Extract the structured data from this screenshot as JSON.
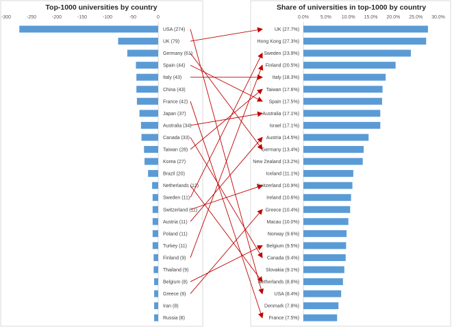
{
  "colors": {
    "bar": "#5b9bd5",
    "arrow": "#c00000",
    "panel_border": "#d9d9d9",
    "axis_line": "#d9d9d9"
  },
  "chart_data": [
    {
      "type": "bar",
      "orientation": "horizontal",
      "title": "Top-1000 universities by country",
      "xlim": [
        -300,
        0
      ],
      "xticks": [
        "-300",
        "-250",
        "-200",
        "-150",
        "-100",
        "-50",
        "0"
      ],
      "categories": [
        "USA (274)",
        "UK (79)",
        "Germany (61)",
        "Spain (44)",
        "Italy (43)",
        "China (43)",
        "France (42)",
        "Japan (37)",
        "Australia (34)",
        "Canada (33)",
        "Taiwan (28)",
        "Korea (27)",
        "Brazil (20)",
        "Netherlands (12)",
        "Sweden (11)",
        "Switzerland (11)",
        "Austria (11)",
        "Poland (11)",
        "Turkey (11)",
        "Finland (9)",
        "Thailand (9)",
        "Belgium (8)",
        "Greece (8)",
        "Iran (8)",
        "Russia (8)"
      ],
      "values": [
        -274,
        -79,
        -61,
        -44,
        -43,
        -43,
        -42,
        -37,
        -34,
        -33,
        -28,
        -27,
        -20,
        -12,
        -11,
        -11,
        -11,
        -11,
        -11,
        -9,
        -9,
        -8,
        -8,
        -8,
        -8
      ]
    },
    {
      "type": "bar",
      "orientation": "horizontal",
      "title": "Share of universities in top-1000 by country",
      "xlim": [
        0,
        30
      ],
      "xticks": [
        "0.0%",
        "5.0%",
        "10.0%",
        "15.0%",
        "20.0%",
        "25.0%",
        "30.0%"
      ],
      "categories": [
        "UK (27.7%)",
        "Hong Kong (27.3%)",
        "Sweden (23.9%)",
        "Finland (20.5%)",
        "Italy (18.3%)",
        "Taiwan (17.6%)",
        "Spain (17.5%)",
        "Australia (17.1%)",
        "Israel (17.1%)",
        "Austria (14.5%)",
        "Germany (13.4%)",
        "New Zealand (13.2%)",
        "Iceland (11.1%)",
        "Switzerland (10.9%)",
        "Ireland (10.6%)",
        "Greece (10.4%)",
        "Macau (10.0%)",
        "Norway (9.6%)",
        "Belgium (9.5%)",
        "Canada (9.4%)",
        "Slovakia (9.1%)",
        "Netherlands (8.8%)",
        "USA (8.4%)",
        "Denmark (7.8%)",
        "France (7.5%)"
      ],
      "values": [
        27.7,
        27.3,
        23.9,
        20.5,
        18.3,
        17.6,
        17.5,
        17.1,
        17.1,
        14.5,
        13.4,
        13.2,
        11.1,
        10.9,
        10.6,
        10.4,
        10.0,
        9.6,
        9.5,
        9.4,
        9.1,
        8.8,
        8.4,
        7.8,
        7.5
      ]
    }
  ],
  "links": [
    {
      "from": "USA (274)",
      "to": "USA (8.4%)"
    },
    {
      "from": "UK (79)",
      "to": "UK (27.7%)"
    },
    {
      "from": "Germany (61)",
      "to": "Germany (13.4%)"
    },
    {
      "from": "Spain (44)",
      "to": "Spain (17.5%)"
    },
    {
      "from": "Italy (43)",
      "to": "Italy (18.3%)"
    },
    {
      "from": "France (42)",
      "to": "France (7.5%)"
    },
    {
      "from": "Australia (34)",
      "to": "Australia (17.1%)"
    },
    {
      "from": "Canada (33)",
      "to": "Canada (9.4%)"
    },
    {
      "from": "Taiwan (28)",
      "to": "Taiwan (17.6%)"
    },
    {
      "from": "Netherlands (12)",
      "to": "Netherlands (8.8%)"
    },
    {
      "from": "Sweden (11)",
      "to": "Sweden (23.9%)"
    },
    {
      "from": "Switzerland (11)",
      "to": "Switzerland (10.9%)"
    },
    {
      "from": "Austria (11)",
      "to": "Austria (14.5%)"
    },
    {
      "from": "Finland (9)",
      "to": "Finland (20.5%)"
    },
    {
      "from": "Belgium (8)",
      "to": "Belgium (9.5%)"
    },
    {
      "from": "Greece (8)",
      "to": "Greece (10.4%)"
    }
  ]
}
